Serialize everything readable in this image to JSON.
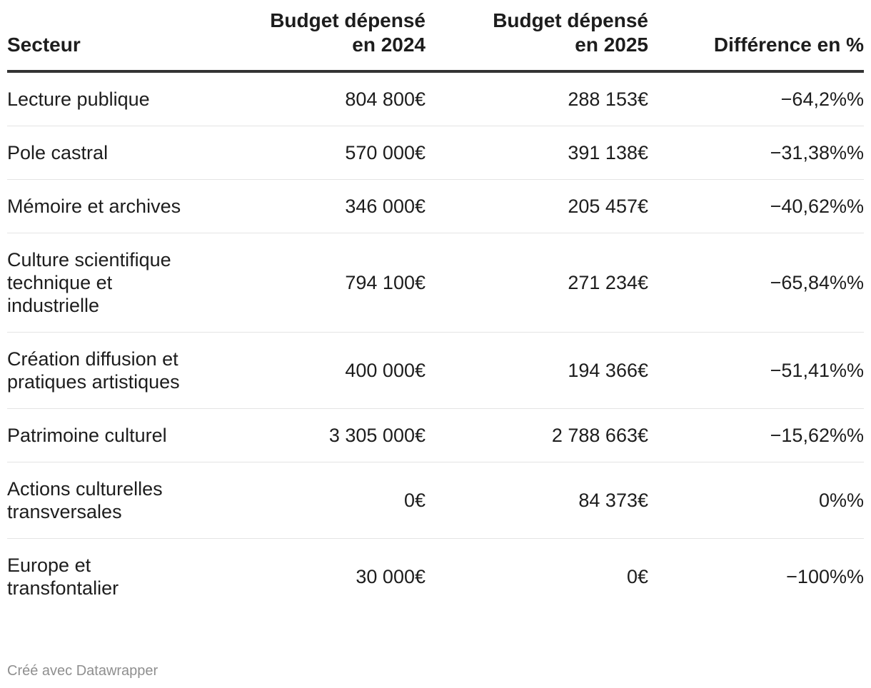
{
  "chart_data": {
    "type": "table",
    "columns": [
      {
        "lines": [
          "Secteur"
        ]
      },
      {
        "lines": [
          "Budget dépensé",
          "en 2024"
        ]
      },
      {
        "lines": [
          "Budget dépensé",
          "en 2025"
        ]
      },
      {
        "lines": [
          "Différence en %"
        ]
      }
    ],
    "rows": [
      {
        "sector_lines": [
          "Lecture publique"
        ],
        "y2024": "804 800€",
        "y2025": "288 153€",
        "diff": "−64,2%%"
      },
      {
        "sector_lines": [
          "Pole castral"
        ],
        "y2024": "570 000€",
        "y2025": "391 138€",
        "diff": "−31,38%%"
      },
      {
        "sector_lines": [
          "Mémoire et archives"
        ],
        "y2024": "346 000€",
        "y2025": "205 457€",
        "diff": "−40,62%%"
      },
      {
        "sector_lines": [
          "Culture scientifique",
          "technique et",
          "industrielle"
        ],
        "y2024": "794 100€",
        "y2025": "271 234€",
        "diff": "−65,84%%"
      },
      {
        "sector_lines": [
          "Création diffusion et",
          "pratiques artistiques"
        ],
        "y2024": "400 000€",
        "y2025": "194 366€",
        "diff": "−51,41%%"
      },
      {
        "sector_lines": [
          "Patrimoine culturel"
        ],
        "y2024": "3 305 000€",
        "y2025": "2 788 663€",
        "diff": "−15,62%%"
      },
      {
        "sector_lines": [
          "Actions culturelles",
          "transversales"
        ],
        "y2024": "0€",
        "y2025": "84 373€",
        "diff": "0%%"
      },
      {
        "sector_lines": [
          "Europe et",
          "transfontalier"
        ],
        "y2024": "30 000€",
        "y2025": "0€",
        "diff": "−100%%"
      }
    ]
  },
  "footer": {
    "credit": "Créé avec Datawrapper"
  }
}
